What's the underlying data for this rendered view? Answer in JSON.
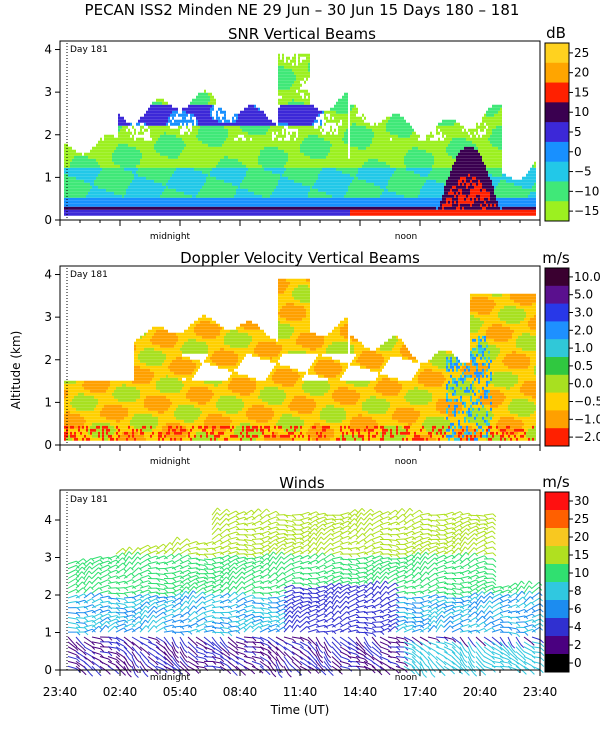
{
  "title": "PECAN ISS2 Minden NE  29 Jun – 30 Jun 15 Days 180 – 181",
  "chart_data": [
    {
      "type": "heatmap",
      "title": "SNR Vertical Beams",
      "day_marker": "Day 181",
      "x_markers": [
        "midnight",
        "noon"
      ],
      "ylim": [
        0,
        4.2
      ],
      "yticks": [
        "0",
        "1",
        "2",
        "3",
        "4"
      ],
      "ylabel": "",
      "colorbar": {
        "unit": "dB",
        "labels": [
          "25",
          "20",
          "15",
          "10",
          "5",
          "0",
          "−5",
          "−10",
          "−15"
        ],
        "colors": [
          "#ffd21f",
          "#ffa500",
          "#ff2000",
          "#3a0050",
          "#3c28d8",
          "#1890ff",
          "#22c8e8",
          "#40e878",
          "#9cf020"
        ]
      }
    },
    {
      "type": "heatmap",
      "title": "Doppler Velocity Vertical Beams",
      "day_marker": "Day 181",
      "x_markers": [
        "midnight",
        "noon"
      ],
      "ylim": [
        0,
        4.2
      ],
      "yticks": [
        "0",
        "1",
        "2",
        "3",
        "4"
      ],
      "ylabel": "Altitude (km)",
      "colorbar": {
        "unit": "m/s",
        "labels": [
          "10.0",
          "5.0",
          "3.0",
          "2.0",
          "1.0",
          "0.5",
          "0.0",
          "−0.5",
          "−1.0",
          "−2.0"
        ],
        "colors": [
          "#3a0030",
          "#5a108e",
          "#2838e8",
          "#1e90ff",
          "#30c8d8",
          "#30c840",
          "#a8e020",
          "#ffd000",
          "#ffa000",
          "#ff2000"
        ]
      }
    },
    {
      "type": "barbs",
      "title": "Winds",
      "day_marker": "Day 181",
      "x_markers": [
        "midnight",
        "noon"
      ],
      "ylim": [
        0,
        4.8
      ],
      "yticks": [
        "0",
        "1",
        "2",
        "3",
        "4"
      ],
      "xlabel": "Time (UT)",
      "xticks": [
        "23:40",
        "02:40",
        "05:40",
        "08:40",
        "11:40",
        "14:40",
        "17:40",
        "20:40",
        "23:40"
      ],
      "colorbar": {
        "unit": "m/s",
        "labels": [
          "30",
          "25",
          "20",
          "15",
          "10",
          "8",
          "6",
          "4",
          "2",
          "0"
        ],
        "colors": [
          "#ff1010",
          "#ff6000",
          "#f8c820",
          "#b0e020",
          "#30e070",
          "#30c8e0",
          "#1c8cf0",
          "#3030d0",
          "#4a0080",
          "#000000"
        ]
      }
    }
  ]
}
